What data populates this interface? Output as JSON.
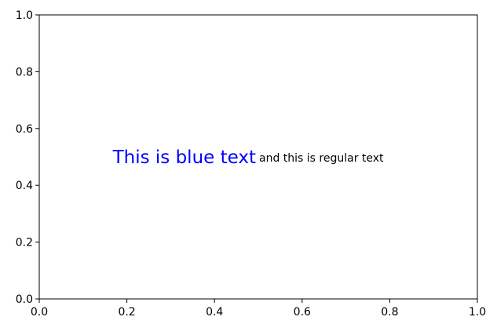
{
  "chart_data": {
    "type": "scatter",
    "title": "",
    "xlabel": "",
    "ylabel": "",
    "xlim": [
      0,
      1
    ],
    "ylim": [
      0,
      1
    ],
    "grid": false,
    "xticks": [
      0.0,
      0.2,
      0.4,
      0.6,
      0.8,
      1.0
    ],
    "yticks": [
      0.0,
      0.2,
      0.4,
      0.6,
      0.8,
      1.0
    ],
    "xtick_labels": [
      "0.0",
      "0.2",
      "0.4",
      "0.6",
      "0.8",
      "1.0"
    ],
    "ytick_labels": [
      "0.0",
      "0.2",
      "0.4",
      "0.6",
      "0.8",
      "1.0"
    ],
    "annotations": [
      {
        "text": "This is blue text",
        "x": 0.5,
        "y": 0.5,
        "color": "#0000ff",
        "anchor": "end"
      },
      {
        "text": "and this is regular text",
        "x": 0.5,
        "y": 0.5,
        "color": "#000000",
        "anchor": "start"
      }
    ]
  }
}
